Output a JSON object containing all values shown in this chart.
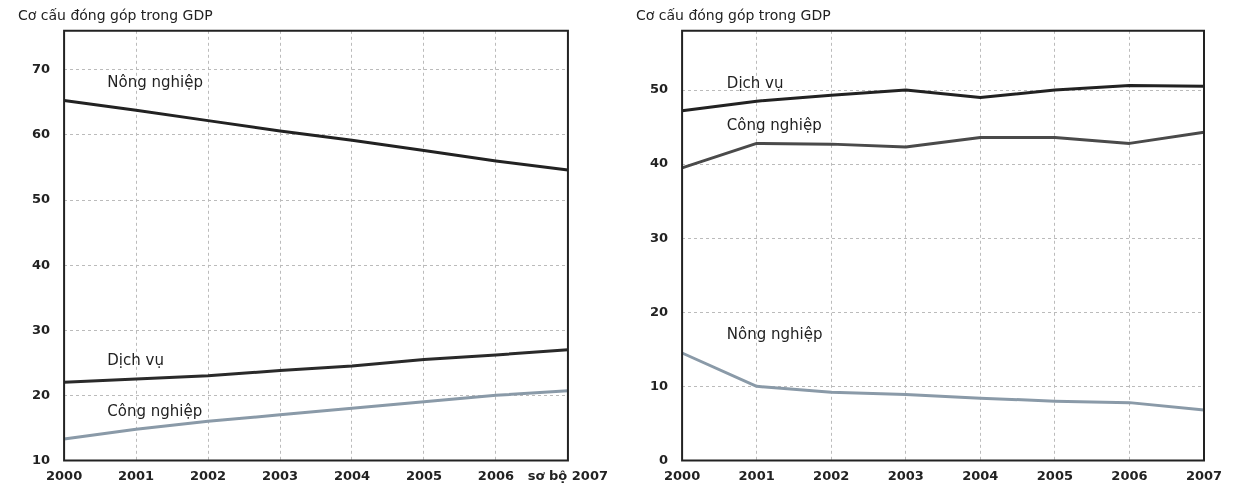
{
  "chart_data": [
    {
      "type": "line",
      "title": "Cơ cấu đóng góp trong GDP",
      "categories": [
        "2000",
        "2001",
        "2002",
        "2003",
        "2004",
        "2005",
        "2006",
        "sơ bộ 2007"
      ],
      "ylim": [
        10,
        76
      ],
      "yticks": [
        10,
        20,
        30,
        40,
        50,
        60,
        70
      ],
      "grid": true,
      "legend": false,
      "marker": "none",
      "line_style": "solid",
      "series": [
        {
          "name": "Nông nghiệp",
          "color": "#222222",
          "values": [
            65.3,
            63.8,
            62.2,
            60.6,
            59.2,
            57.6,
            56,
            54.6
          ]
        },
        {
          "name": "Dịch vụ",
          "color": "#2a2a2a",
          "values": [
            22,
            22.5,
            23,
            23.8,
            24.5,
            25.5,
            26.2,
            27
          ]
        },
        {
          "name": "Công nghiệp",
          "color": "#8a9aa8",
          "values": [
            13.3,
            14.8,
            16,
            17,
            18,
            19,
            20,
            20.7
          ]
        }
      ]
    },
    {
      "type": "line",
      "title": "Cơ cấu đóng góp trong GDP",
      "categories": [
        "2000",
        "2001",
        "2002",
        "2003",
        "2004",
        "2005",
        "2006",
        "2007"
      ],
      "ylim": [
        0,
        58
      ],
      "yticks": [
        0,
        10,
        20,
        30,
        40,
        50
      ],
      "grid": true,
      "legend": false,
      "marker": "none",
      "line_style": "solid",
      "series": [
        {
          "name": "Dịch vụ",
          "color": "#222222",
          "values": [
            47.2,
            48.5,
            49.3,
            50,
            49,
            50,
            50.6,
            50.5
          ]
        },
        {
          "name": "Công nghiệp",
          "color": "#4a4a4a",
          "values": [
            39.5,
            42.8,
            42.7,
            42.3,
            43.6,
            43.6,
            42.8,
            44.3
          ]
        },
        {
          "name": "Nông nghiệp",
          "color": "#8a9aa8",
          "values": [
            14.5,
            10,
            9.2,
            8.9,
            8.4,
            8,
            7.8,
            6.8
          ]
        }
      ]
    }
  ]
}
